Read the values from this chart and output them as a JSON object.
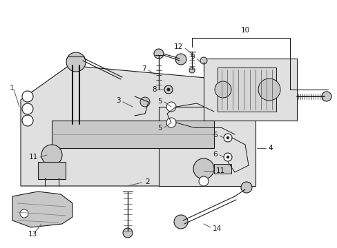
{
  "bg_color": "#ffffff",
  "lc": "#1a1a1a",
  "gray_fill": "#e0e0e0",
  "mid_gray": "#c8c8c8",
  "dark_gray": "#a0a0a0",
  "figsize": [
    4.89,
    3.6
  ],
  "dpi": 100
}
